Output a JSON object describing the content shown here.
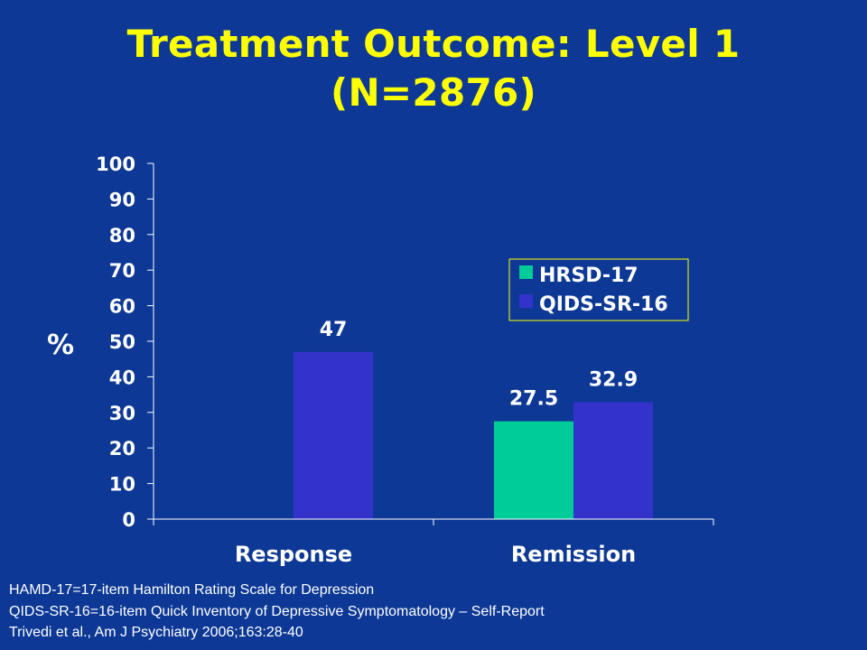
{
  "slide": {
    "title_line1": "Treatment Outcome:  Level 1",
    "title_line2": "(N=2876)",
    "footnotes": [
      "HAMD-17=17-item Hamilton Rating Scale for Depression",
      "QIDS-SR-16=16-item Quick Inventory of Depressive Symptomatology – Self-Report",
      "Trivedi et al., Am J Psychiatry 2006;163:28-40"
    ]
  },
  "colors": {
    "background": "#0d3895",
    "title": "#ffff00",
    "axis_text": "#ffffff",
    "hrsd17": "#00cc99",
    "qidssr16": "#3333cc",
    "legend_bg": "#0d3895",
    "legend_border": "#ffff00"
  },
  "chart_data": {
    "type": "bar",
    "title": "Treatment Outcome:  Level 1 (N=2876)",
    "xlabel": "",
    "ylabel": "%",
    "ylim": [
      0,
      100
    ],
    "yticks": [
      "0",
      "10",
      "20",
      "30",
      "40",
      "50",
      "60",
      "70",
      "80",
      "90",
      "100"
    ],
    "categories": [
      "Response",
      "Remission"
    ],
    "series": [
      {
        "name": "HRSD-17",
        "values": [
          null,
          27.5
        ],
        "labels": [
          null,
          "27.5"
        ]
      },
      {
        "name": "QIDS-SR-16",
        "values": [
          47,
          32.9
        ],
        "labels": [
          "47",
          "32.9"
        ]
      }
    ],
    "legend_position": "right",
    "grid": false
  }
}
